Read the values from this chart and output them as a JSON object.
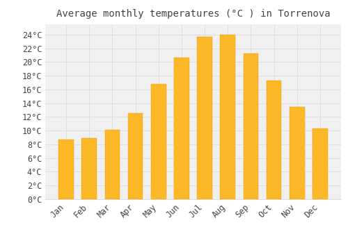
{
  "title": "Average monthly temperatures (°C ) in Torrenova",
  "months": [
    "Jan",
    "Feb",
    "Mar",
    "Apr",
    "May",
    "Jun",
    "Jul",
    "Aug",
    "Sep",
    "Oct",
    "Nov",
    "Dec"
  ],
  "temperatures": [
    8.7,
    8.9,
    10.1,
    12.5,
    16.8,
    20.6,
    23.7,
    24.0,
    21.2,
    17.3,
    13.5,
    10.3
  ],
  "bar_color_top": "#FDB827",
  "bar_color_bottom": "#F5900A",
  "bar_edge_color": "#E8950A",
  "background_color": "#FFFFFF",
  "plot_bg_color": "#F0F0F0",
  "grid_color": "#DDDDDD",
  "text_color": "#444444",
  "ylim": [
    0,
    25.5
  ],
  "yticks": [
    0,
    2,
    4,
    6,
    8,
    10,
    12,
    14,
    16,
    18,
    20,
    22,
    24
  ],
  "title_fontsize": 10,
  "tick_fontsize": 8.5,
  "font_family": "monospace"
}
